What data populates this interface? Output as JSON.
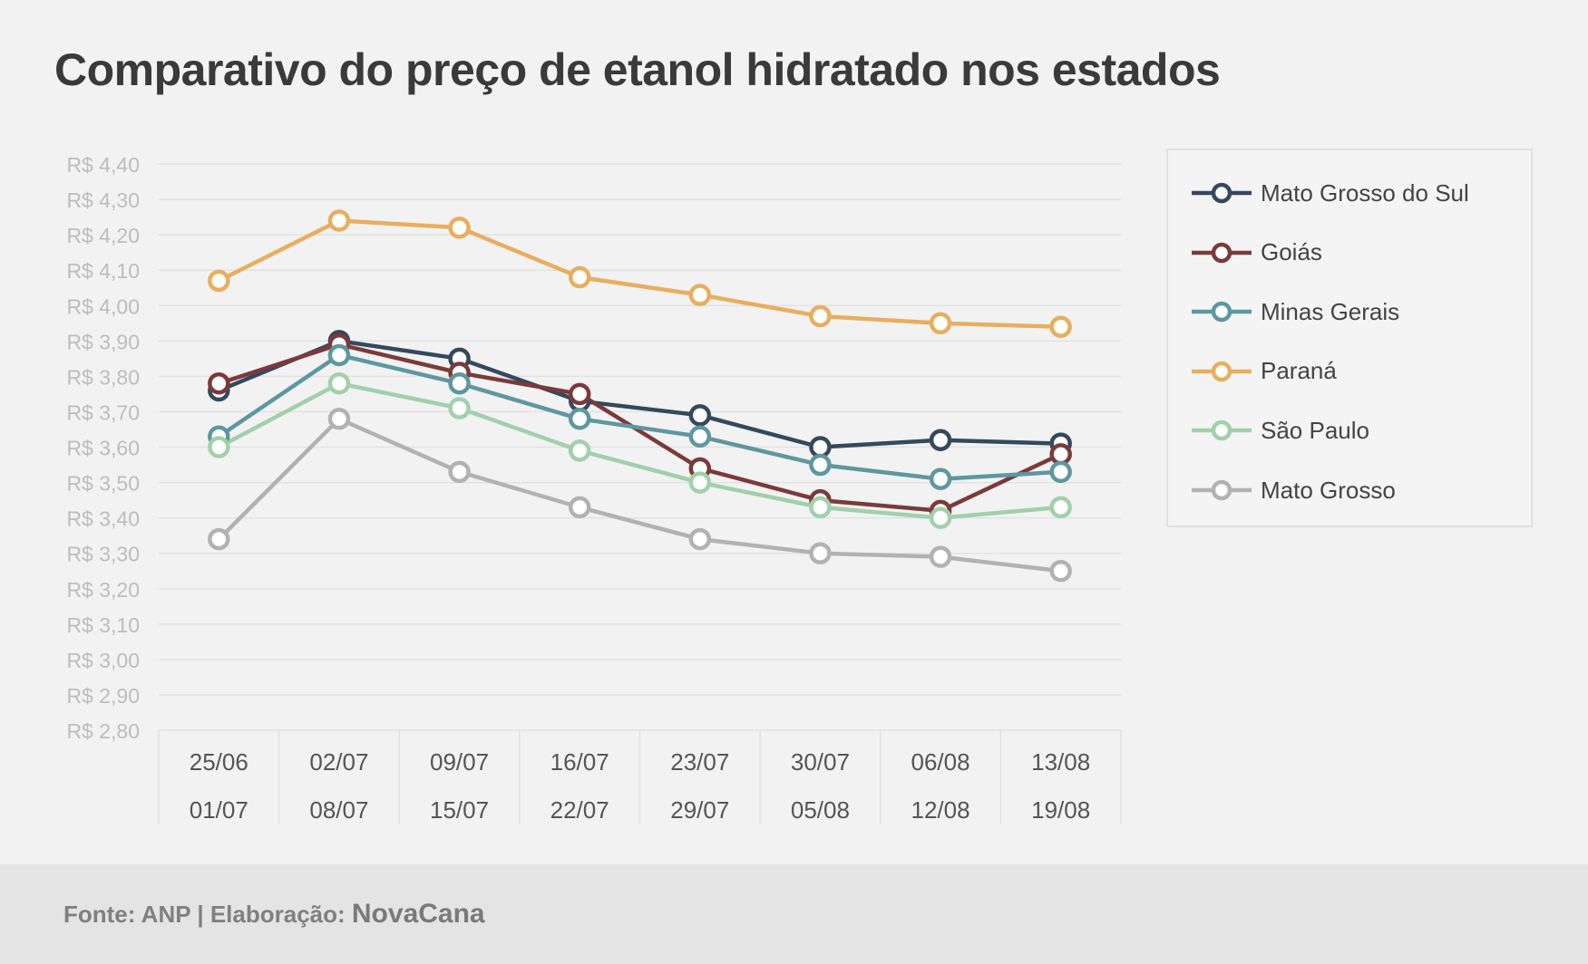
{
  "title": "Comparativo do preço de etanol hidratado nos estados",
  "footer": {
    "source": "Fonte: ANP | Elaboração:",
    "brand": "NovaCana"
  },
  "chart_data": {
    "type": "line",
    "title": "Comparativo do preço de etanol hidratado nos estados",
    "xlabel": "",
    "ylabel": "",
    "ylim": [
      2.8,
      4.4
    ],
    "y_ticks": [
      "R$ 4,40",
      "R$ 4,30",
      "R$ 4,20",
      "R$ 4,10",
      "R$ 4,00",
      "R$ 3,90",
      "R$ 3,80",
      "R$ 3,70",
      "R$ 3,60",
      "R$ 3,50",
      "R$ 3,40",
      "R$ 3,30",
      "R$ 3,20",
      "R$ 3,10",
      "R$ 3,00",
      "R$ 2,90",
      "R$ 2,80"
    ],
    "categories": [
      {
        "from": "25/06",
        "to": "01/07"
      },
      {
        "from": "02/07",
        "to": "08/07"
      },
      {
        "from": "09/07",
        "to": "15/07"
      },
      {
        "from": "16/07",
        "to": "22/07"
      },
      {
        "from": "23/07",
        "to": "29/07"
      },
      {
        "from": "30/07",
        "to": "05/08"
      },
      {
        "from": "06/08",
        "to": "12/08"
      },
      {
        "from": "13/08",
        "to": "19/08"
      }
    ],
    "grid": true,
    "legend_position": "right",
    "series": [
      {
        "name": "Mato Grosso do Sul",
        "color": "#34495e",
        "values": [
          3.76,
          3.9,
          3.85,
          3.73,
          3.69,
          3.6,
          3.62,
          3.61
        ]
      },
      {
        "name": "Goiás",
        "color": "#7b3a3a",
        "values": [
          3.78,
          3.89,
          3.81,
          3.75,
          3.54,
          3.45,
          3.42,
          3.58
        ]
      },
      {
        "name": "Minas Gerais",
        "color": "#5e97a0",
        "values": [
          3.63,
          3.86,
          3.78,
          3.68,
          3.63,
          3.55,
          3.51,
          3.53
        ]
      },
      {
        "name": "Paraná",
        "color": "#e8ae5e",
        "values": [
          4.07,
          4.24,
          4.22,
          4.08,
          4.03,
          3.97,
          3.95,
          3.94
        ]
      },
      {
        "name": "São Paulo",
        "color": "#a1d0aa",
        "values": [
          3.6,
          3.78,
          3.71,
          3.59,
          3.5,
          3.43,
          3.4,
          3.43
        ]
      },
      {
        "name": "Mato Grosso",
        "color": "#b2b2b2",
        "values": [
          3.34,
          3.68,
          3.53,
          3.43,
          3.34,
          3.3,
          3.29,
          3.25
        ]
      }
    ]
  }
}
